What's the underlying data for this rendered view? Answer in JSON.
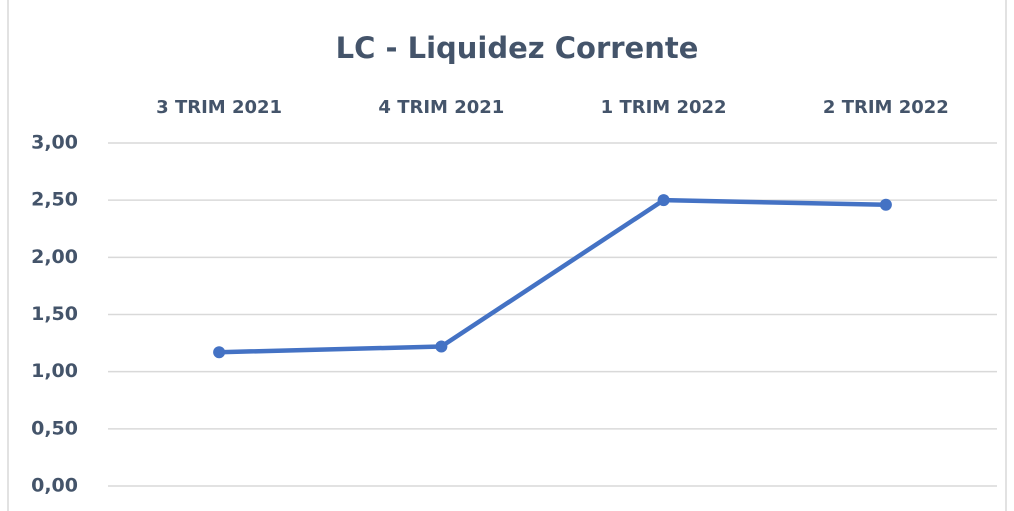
{
  "chart_data": {
    "type": "line",
    "title": "LC - Liquidez Corrente",
    "categories": [
      "3 TRIM 2021",
      "4 TRIM 2021",
      "1 TRIM 2022",
      "2 TRIM 2022"
    ],
    "series": [
      {
        "name": "LC",
        "color": "#4472c4",
        "values": [
          1.17,
          1.22,
          2.5,
          2.46
        ]
      }
    ],
    "ylim": [
      0,
      3
    ],
    "yticks": [
      {
        "value": 0,
        "label": "0,00"
      },
      {
        "value": 0.5,
        "label": "0,50"
      },
      {
        "value": 1,
        "label": "1,00"
      },
      {
        "value": 1.5,
        "label": "1,50"
      },
      {
        "value": 2,
        "label": "2,00"
      },
      {
        "value": 2.5,
        "label": "2,50"
      },
      {
        "value": 3,
        "label": "3,00"
      }
    ],
    "grid": true
  }
}
